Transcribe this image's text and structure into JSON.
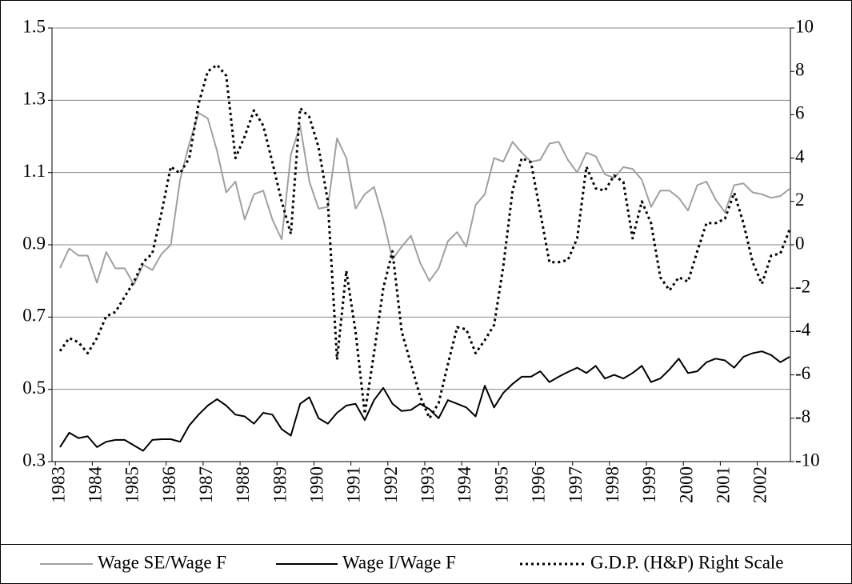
{
  "chart_data": {
    "type": "line",
    "categories": [
      "1983",
      null,
      null,
      null,
      "1984",
      null,
      null,
      null,
      "1985",
      null,
      null,
      null,
      "1986",
      null,
      null,
      null,
      "1987",
      null,
      null,
      null,
      "1988",
      null,
      null,
      null,
      "1989",
      null,
      null,
      null,
      "1990",
      null,
      null,
      null,
      "1991",
      null,
      null,
      null,
      "1992",
      null,
      null,
      null,
      "1993",
      null,
      null,
      null,
      "1994",
      null,
      null,
      null,
      "1995",
      null,
      null,
      null,
      "1996",
      null,
      null,
      null,
      "1997",
      null,
      null,
      null,
      "1998",
      null,
      null,
      null,
      "1999",
      null,
      null,
      null,
      "2000",
      null,
      null,
      null,
      "2001",
      null,
      null,
      null,
      "2002",
      null,
      null,
      null
    ],
    "series": [
      {
        "name": "Wage SE/Wage F",
        "color": "#a0a0a0",
        "values": [
          0.836,
          0.89,
          0.87,
          0.87,
          0.795,
          0.88,
          0.835,
          0.835,
          0.79,
          0.845,
          0.83,
          0.875,
          0.9,
          1.08,
          1.18,
          1.265,
          1.25,
          1.16,
          1.045,
          1.075,
          0.97,
          1.04,
          1.05,
          0.97,
          0.915,
          1.15,
          1.23,
          1.075,
          1.0,
          1.005,
          1.195,
          1.14,
          1.0,
          1.04,
          1.06,
          0.97,
          0.86,
          0.895,
          0.925,
          0.85,
          0.8,
          0.835,
          0.91,
          0.935,
          0.895,
          1.01,
          1.04,
          1.14,
          1.13,
          1.185,
          1.155,
          1.13,
          1.135,
          1.18,
          1.185,
          1.135,
          1.1,
          1.155,
          1.145,
          1.095,
          1.085,
          1.115,
          1.11,
          1.08,
          1.005,
          1.05,
          1.05,
          1.03,
          0.995,
          1.065,
          1.075,
          1.025,
          0.99,
          1.065,
          1.07,
          1.045,
          1.04,
          1.03,
          1.035,
          1.055
        ]
      },
      {
        "name": "Wage I/Wage F",
        "color": "#000000",
        "values": [
          0.34,
          0.38,
          0.365,
          0.37,
          0.34,
          0.355,
          0.36,
          0.36,
          0.345,
          0.33,
          0.36,
          0.362,
          0.362,
          0.355,
          0.4,
          0.43,
          0.455,
          0.473,
          0.455,
          0.43,
          0.425,
          0.405,
          0.435,
          0.43,
          0.39,
          0.372,
          0.46,
          0.478,
          0.42,
          0.405,
          0.435,
          0.455,
          0.46,
          0.415,
          0.47,
          0.504,
          0.46,
          0.44,
          0.443,
          0.46,
          0.445,
          0.42,
          0.47,
          0.46,
          0.45,
          0.425,
          0.51,
          0.45,
          0.49,
          0.515,
          0.535,
          0.535,
          0.55,
          0.52,
          0.535,
          0.548,
          0.56,
          0.545,
          0.565,
          0.53,
          0.54,
          0.53,
          0.545,
          0.565,
          0.52,
          0.53,
          0.555,
          0.585,
          0.545,
          0.55,
          0.575,
          0.585,
          0.58,
          0.56,
          0.59,
          0.6,
          0.605,
          0.595,
          0.575,
          0.59
        ]
      },
      {
        "name": "G.D.P. (H&P) Right Scale",
        "color": "#000000",
        "dashed": true,
        "axis": "y2",
        "values": [
          -4.9,
          -4.3,
          -4.5,
          -5.0,
          -4.3,
          -3.3,
          -3.1,
          -2.4,
          -1.7,
          -0.8,
          -0.4,
          1.5,
          3.6,
          3.3,
          4.0,
          6.5,
          8.0,
          8.3,
          7.8,
          4.0,
          5.0,
          6.2,
          5.5,
          3.8,
          2.0,
          0.5,
          6.3,
          5.9,
          4.5,
          2.0,
          -5.3,
          -1.2,
          -4.0,
          -7.8,
          -5.0,
          -2.0,
          -0.3,
          -4.0,
          -5.5,
          -7.0,
          -8.0,
          -7.3,
          -5.5,
          -3.8,
          -3.9,
          -5.0,
          -4.4,
          -3.7,
          -1.0,
          2.5,
          4.0,
          3.8,
          1.5,
          -0.8,
          -0.8,
          -0.7,
          0.3,
          3.6,
          2.6,
          2.5,
          3.2,
          2.9,
          0.3,
          2.0,
          1.0,
          -1.5,
          -2.1,
          -1.5,
          -1.7,
          -0.3,
          1.0,
          1.0,
          1.2,
          2.4,
          1.0,
          -0.8,
          -1.8,
          -0.5,
          -0.4,
          0.7
        ]
      }
    ],
    "ylim": [
      0.3,
      1.5
    ],
    "yticks": [
      0.3,
      0.5,
      0.7,
      0.9,
      1.1,
      1.3,
      1.5
    ],
    "y2lim": [
      -10,
      10
    ],
    "y2ticks": [
      -10,
      -8,
      -6,
      -4,
      -2,
      0,
      2,
      4,
      6,
      8,
      10
    ],
    "grid": true,
    "legend": "bottom"
  }
}
